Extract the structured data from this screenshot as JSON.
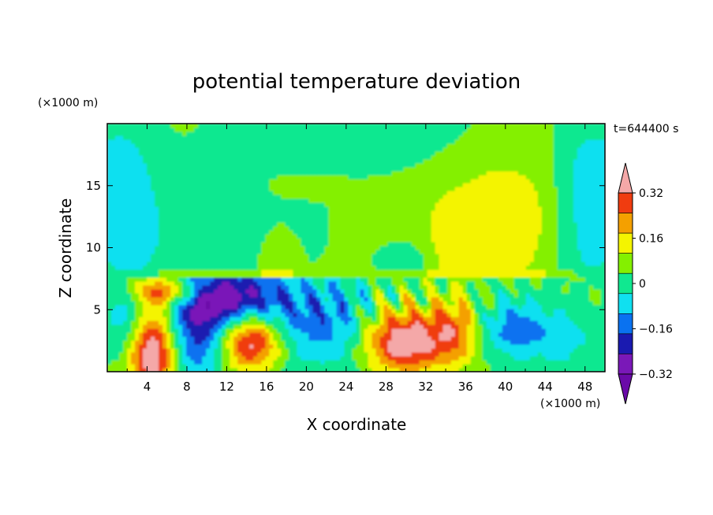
{
  "chart_data": {
    "type": "heatmap",
    "title": "potential temperature deviation",
    "xlabel": "X coordinate",
    "ylabel": "Z coordinate",
    "x_unit": "(×1000 m)",
    "y_unit": "(×1000 m)",
    "time_label": "t=644400 s",
    "xlim": [
      0,
      50
    ],
    "ylim": [
      0,
      20
    ],
    "x_ticks": [
      4,
      8,
      12,
      16,
      20,
      24,
      28,
      32,
      36,
      40,
      44,
      48
    ],
    "y_ticks": [
      5,
      10,
      15
    ],
    "colorbar": {
      "levels": [
        -0.4,
        -0.32,
        -0.24,
        -0.16,
        -0.08,
        0,
        0.08,
        0.16,
        0.24,
        0.32,
        0.4
      ],
      "labels": [
        "−0.32",
        "−0.16",
        "0",
        "0.16",
        "0.32"
      ],
      "label_values": [
        -0.32,
        -0.16,
        0,
        0.16,
        0.32
      ],
      "colors": [
        "#6a0aa8",
        "#7a18b8",
        "#1a1ab0",
        "#0a72f0",
        "#10e0f0",
        "#10e890",
        "#84f000",
        "#f4f400",
        "#f4a000",
        "#f03c10",
        "#f4a8a8"
      ]
    },
    "features": [
      {
        "kind": "upper-layer",
        "value": 0.02,
        "z_range": [
          7.5,
          20
        ]
      },
      {
        "kind": "lower-left-warm-column",
        "x": 4.5,
        "z": 2.0,
        "value": 0.4
      },
      {
        "kind": "warm-blob",
        "x": 14.5,
        "z": 2.5,
        "value": 0.36
      },
      {
        "kind": "warm-blob",
        "x": 30,
        "z": 2.5,
        "value": 0.4
      },
      {
        "kind": "cold-region",
        "x": 12,
        "z": 6.5,
        "value": -0.36
      },
      {
        "kind": "warm-plume",
        "x": 40,
        "z": 12,
        "value": 0.18
      },
      {
        "kind": "cool-sides",
        "x": [
          2,
          48
        ],
        "z": 10,
        "value": -0.16
      }
    ]
  }
}
